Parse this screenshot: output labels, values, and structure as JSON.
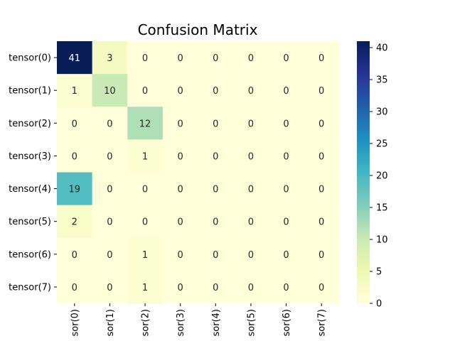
{
  "chart_data": {
    "type": "heatmap",
    "title": "Confusion Matrix",
    "row_labels": [
      "tensor(0)",
      "tensor(1)",
      "tensor(2)",
      "tensor(3)",
      "tensor(4)",
      "tensor(5)",
      "tensor(6)",
      "tensor(7)"
    ],
    "col_labels": [
      "sor(0)",
      "sor(1)",
      "sor(2)",
      "sor(3)",
      "sor(4)",
      "sor(5)",
      "sor(6)",
      "sor(7)"
    ],
    "values": [
      [
        41,
        3,
        0,
        0,
        0,
        0,
        0,
        0
      ],
      [
        1,
        10,
        0,
        0,
        0,
        0,
        0,
        0
      ],
      [
        0,
        0,
        12,
        0,
        0,
        0,
        0,
        0
      ],
      [
        0,
        0,
        1,
        0,
        0,
        0,
        0,
        0
      ],
      [
        19,
        0,
        0,
        0,
        0,
        0,
        0,
        0
      ],
      [
        2,
        0,
        0,
        0,
        0,
        0,
        0,
        0
      ],
      [
        0,
        0,
        1,
        0,
        0,
        0,
        0,
        0
      ],
      [
        0,
        0,
        1,
        0,
        0,
        0,
        0,
        0
      ]
    ],
    "colorbar": {
      "min": 0,
      "max": 41,
      "ticks": [
        0,
        5,
        10,
        15,
        20,
        25,
        30,
        35,
        40
      ],
      "colormap": "YlGnBu",
      "colors": [
        "#ffffd9",
        "#edf8b1",
        "#c7e9b4",
        "#7fcdbb",
        "#41b6c4",
        "#1d91c0",
        "#225ea8",
        "#253494",
        "#081d58"
      ]
    },
    "annotations": true,
    "dark_text_color": "#262626",
    "light_text_color": "#ffffff"
  }
}
